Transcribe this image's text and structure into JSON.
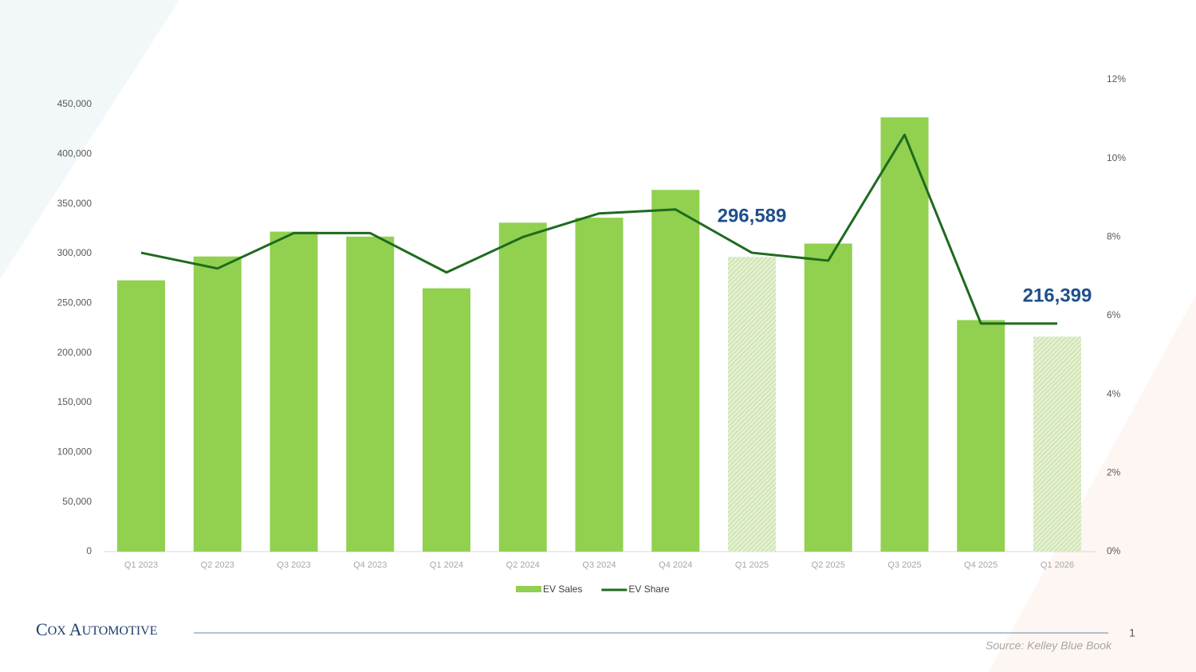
{
  "chart_data": {
    "type": "bar_line",
    "categories": [
      "Q1 2023",
      "Q2 2023",
      "Q3 2023",
      "Q4 2023",
      "Q1 2024",
      "Q2 2024",
      "Q3 2024",
      "Q4 2024",
      "Q1 2025",
      "Q2 2025",
      "Q3 2025",
      "Q4 2025",
      "Q1 2026"
    ],
    "series": [
      {
        "name": "EV Sales",
        "type": "bar",
        "color": "#92d050",
        "values": [
          273000,
          297000,
          322000,
          317000,
          265000,
          331000,
          336000,
          364000,
          296589,
          310000,
          437000,
          233000,
          216399
        ],
        "value_labels": [
          null,
          null,
          null,
          null,
          null,
          null,
          null,
          null,
          "296,589",
          null,
          null,
          null,
          "216,399"
        ],
        "hatched": [
          false,
          false,
          false,
          false,
          false,
          false,
          false,
          false,
          true,
          false,
          false,
          false,
          true
        ]
      },
      {
        "name": "EV Share",
        "type": "line",
        "axis": "y2",
        "color": "#1e6b1e",
        "values": [
          7.6,
          7.2,
          8.1,
          8.1,
          7.1,
          8.0,
          8.6,
          8.7,
          7.6,
          7.4,
          10.6,
          5.8,
          5.8
        ]
      }
    ],
    "ylim": [
      0,
      450000
    ],
    "yticks": [
      0,
      {
        "value": 50000,
        "label": "50,000"
      },
      {
        "value": 100000,
        "label": "100,000"
      },
      {
        "value": 150000,
        "label": "150,000"
      },
      {
        "value": 200000,
        "label": "200,000"
      },
      {
        "value": 250000,
        "label": "250,000"
      },
      {
        "value": 300000,
        "label": "300,000"
      },
      {
        "value": 350000,
        "label": "350,000"
      },
      {
        "value": 400000,
        "label": "400,000"
      },
      {
        "value": 450000,
        "label": "450,000"
      }
    ],
    "y2lim": [
      0,
      12
    ],
    "y2ticks": [
      {
        "value": 0,
        "label": "0%"
      },
      {
        "value": 2,
        "label": "2%"
      },
      {
        "value": 4,
        "label": "4%"
      },
      {
        "value": 6,
        "label": "6%"
      },
      {
        "value": 8,
        "label": "8%"
      },
      {
        "value": 10,
        "label": "10%"
      },
      {
        "value": 12,
        "label": "12%"
      }
    ],
    "legend": "bottom"
  },
  "footer": {
    "brand_first": "C",
    "brand_rest": "OX ",
    "brand_second": "A",
    "brand_second_rest": "UTOMOTIVE",
    "page_number": "1",
    "source": "Source: Kelley Blue Book"
  }
}
